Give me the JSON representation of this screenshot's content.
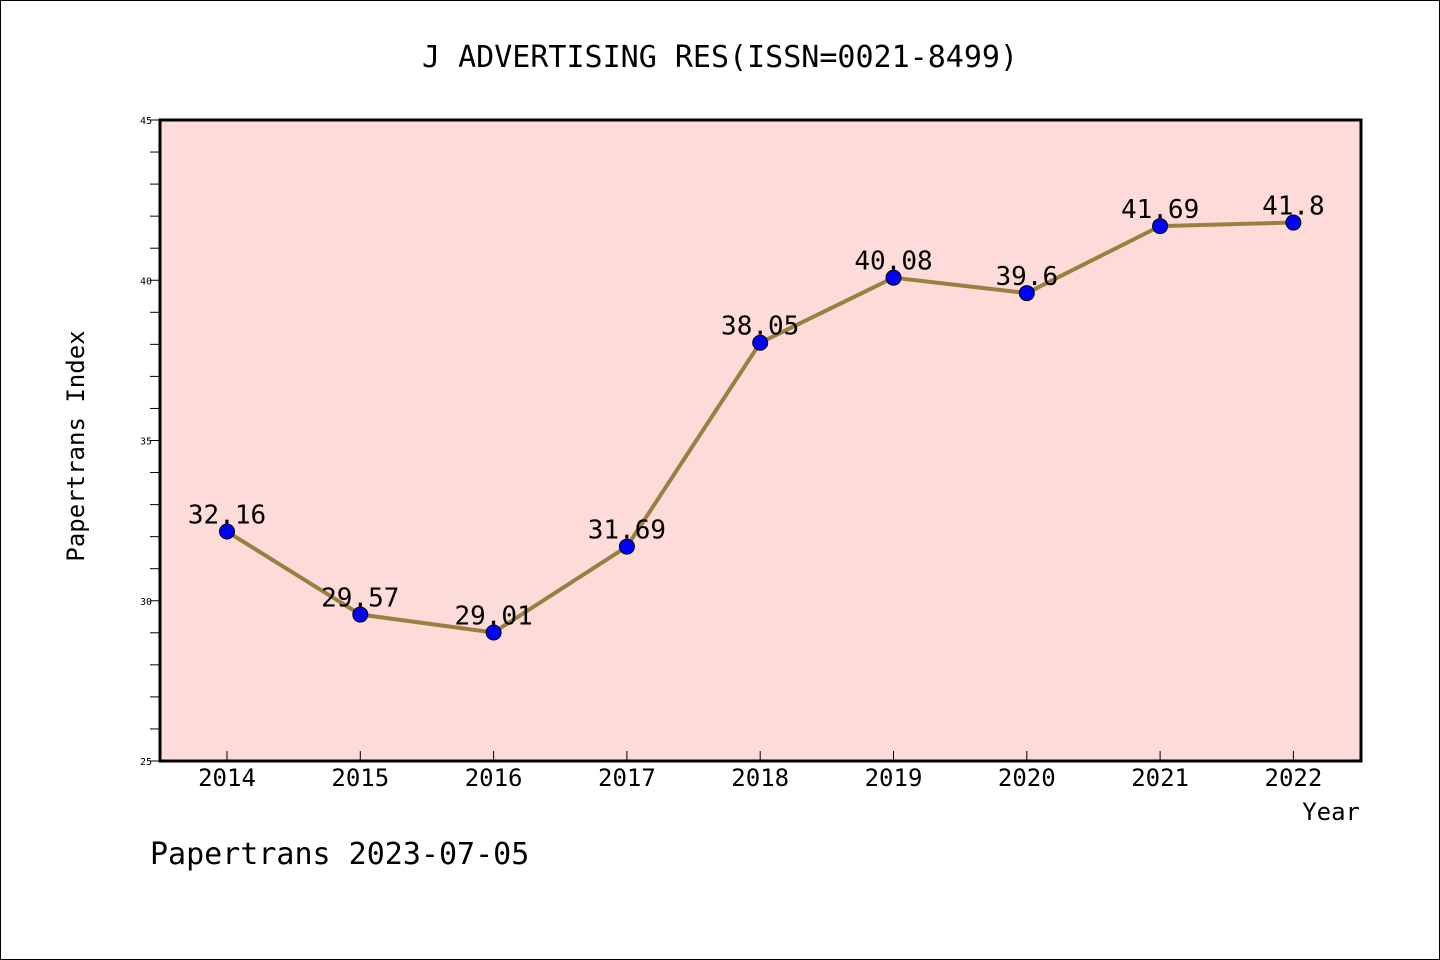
{
  "chart_data": {
    "type": "line",
    "title": "J ADVERTISING RES(ISSN=0021-8499)",
    "xlabel": "Year",
    "ylabel": "Papertrans Index",
    "categories": [
      "2014",
      "2015",
      "2016",
      "2017",
      "2018",
      "2019",
      "2020",
      "2021",
      "2022"
    ],
    "values": [
      32.16,
      29.57,
      29.01,
      31.69,
      38.05,
      40.08,
      39.6,
      41.69,
      41.8
    ],
    "data_labels": [
      "32.16",
      "29.57",
      "29.01",
      "31.69",
      "38.05",
      "40.08",
      "39.6",
      "41.69",
      "41.8"
    ],
    "ylim": [
      25,
      45
    ],
    "yticks": [
      "25",
      "30",
      "35",
      "40",
      "45"
    ],
    "grid": false,
    "legend": "none",
    "colors": {
      "plot_background": "#fddbd8",
      "line": "#9a8040",
      "marker": "#0000ff",
      "axis": "#000000"
    }
  },
  "footer": {
    "text": "Papertrans 2023-07-05"
  }
}
